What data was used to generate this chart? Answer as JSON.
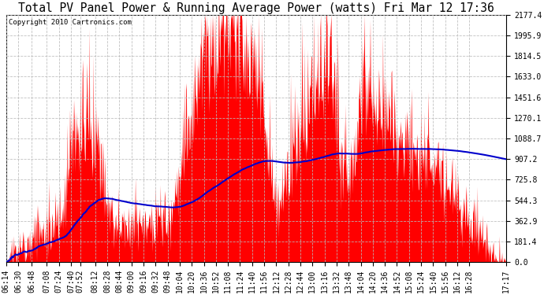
{
  "title": "Total PV Panel Power & Running Average Power (watts) Fri Mar 12 17:36",
  "copyright": "Copyright 2010 Cartronics.com",
  "y_ticks": [
    0.0,
    181.4,
    362.9,
    544.3,
    725.8,
    907.2,
    1088.7,
    1270.1,
    1451.6,
    1633.0,
    1814.5,
    1995.9,
    2177.4
  ],
  "y_max": 2177.4,
  "fill_color": "#FF0000",
  "line_color": "#0000CC",
  "grid_color": "#BBBBBB",
  "background_color": "#FFFFFF",
  "title_fontsize": 10.5,
  "copyright_fontsize": 6.5,
  "tick_fontsize": 7,
  "x_tick_labels": [
    "06:14",
    "06:30",
    "06:48",
    "07:08",
    "07:24",
    "07:40",
    "07:52",
    "08:12",
    "08:28",
    "08:44",
    "09:00",
    "09:16",
    "09:32",
    "09:48",
    "10:04",
    "10:20",
    "10:36",
    "10:52",
    "11:08",
    "11:24",
    "11:40",
    "11:56",
    "12:12",
    "12:28",
    "12:44",
    "13:00",
    "13:16",
    "13:32",
    "13:48",
    "14:04",
    "14:20",
    "14:36",
    "14:52",
    "15:08",
    "15:24",
    "15:40",
    "15:56",
    "16:12",
    "16:28",
    "17:17"
  ]
}
